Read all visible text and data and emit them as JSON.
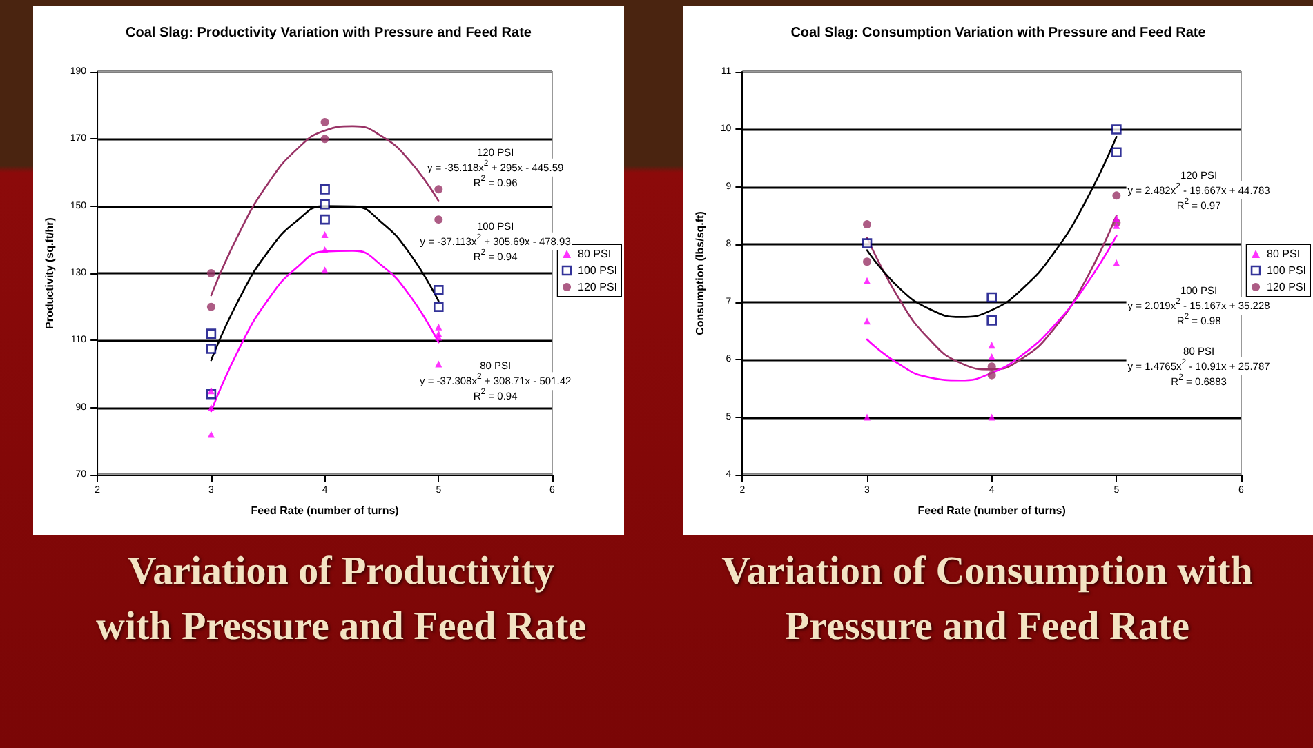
{
  "chart_data": [
    {
      "type": "scatter",
      "title": "Coal Slag: Productivity Variation with Pressure and Feed Rate",
      "subtitle": "Variation of Productivity with Pressure and Feed Rate",
      "xlabel": "Feed Rate (number of turns)",
      "ylabel": "Productivity (sq.ft/hr)",
      "xlim": [
        2,
        6
      ],
      "xticks": [
        2,
        3,
        4,
        5,
        6
      ],
      "ylim": [
        70,
        190
      ],
      "yticks": [
        70,
        90,
        110,
        130,
        150,
        170,
        190
      ],
      "grid": "y",
      "legend": "right",
      "series": [
        {
          "name": "80 PSI",
          "color": "#ff00ff",
          "marker": "triangle",
          "x": [
            3,
            3,
            3,
            4,
            4,
            4,
            5,
            5,
            5,
            5
          ],
          "values": [
            82,
            90,
            95,
            131,
            137,
            141.5,
            103,
            111,
            112,
            114
          ]
        },
        {
          "name": "100 PSI",
          "color": "#000080",
          "marker": "square",
          "x": [
            3,
            3,
            3,
            4,
            4,
            4,
            5,
            5
          ],
          "values": [
            94,
            107.5,
            112,
            146,
            150.5,
            155,
            120,
            125
          ]
        },
        {
          "name": "120 PSI",
          "color": "#993366",
          "marker": "circle",
          "x": [
            3,
            3,
            4,
            4,
            5,
            5
          ],
          "values": [
            120,
            130,
            170,
            175,
            146,
            155
          ]
        },
        {
          "type": "line",
          "color": "#993366",
          "marker": "none",
          "x": [
            3,
            3.25,
            3.5,
            3.75,
            4,
            4.25,
            4.5,
            4.75,
            5
          ],
          "values": [
            123.4,
            142.2,
            156.7,
            166.8,
            172.5,
            173.8,
            170.8,
            163.3,
            151.5
          ]
        },
        {
          "type": "line",
          "color": "#000000",
          "marker": "none",
          "x": [
            3,
            3.25,
            3.5,
            3.75,
            4,
            4.25,
            4.5,
            4.75,
            5
          ],
          "values": [
            104.1,
            122.6,
            136.4,
            145.5,
            150,
            149.9,
            145.1,
            135.7,
            121.7
          ]
        },
        {
          "type": "line",
          "color": "#ff00ff",
          "marker": "none",
          "x": [
            3,
            3.25,
            3.5,
            3.75,
            4,
            4.25,
            4.5,
            4.75,
            5
          ],
          "values": [
            88.9,
            107.8,
            122.1,
            131.6,
            136.5,
            136.7,
            132.3,
            123.2,
            109.4
          ]
        }
      ],
      "annotations": [
        "120 PSI",
        "y = -35.118x$^{2}$ + 295x - 445.59",
        "R$^{2}$ = 0.96",
        "100 PSI",
        "y = -37.113x$^{2}$ + 305.69x - 478.93",
        "R$^{2}$ = 0.94",
        "80 PSI",
        "y = -37.308x$^{2}$ + 308.71x - 501.42",
        "R$^{2}$ = 0.94"
      ]
    },
    {
      "type": "scatter",
      "title": "Coal Slag: Consumption Variation with Pressure and Feed Rate",
      "subtitle": "Variation of Consumption with Pressure and Feed Rate",
      "xlabel": "Feed Rate (number of turns)",
      "ylabel": "Consumption (lbs/sq.ft)",
      "xlim": [
        2,
        6
      ],
      "xticks": [
        2,
        3,
        4,
        5,
        6
      ],
      "ylim": [
        4,
        11
      ],
      "yticks": [
        4,
        5,
        6,
        7,
        8,
        9,
        10,
        11
      ],
      "grid": "y",
      "legend": "right",
      "series": [
        {
          "name": "80 PSI",
          "color": "#ff00ff",
          "marker": "triangle",
          "x": [
            3,
            3,
            3,
            4,
            4,
            4,
            5,
            5,
            5
          ],
          "values": [
            5,
            6.67,
            7.37,
            5,
            6.05,
            6.25,
            7.68,
            8.33,
            8.45
          ]
        },
        {
          "name": "100 PSI",
          "color": "#000080",
          "marker": "square",
          "x": [
            3,
            4,
            4,
            5,
            5
          ],
          "values": [
            8.02,
            6.68,
            7.08,
            9.6,
            10
          ]
        },
        {
          "name": "120 PSI",
          "color": "#993366",
          "marker": "circle",
          "x": [
            3,
            3,
            4,
            4,
            5,
            5
          ],
          "values": [
            7.7,
            8.35,
            5.73,
            5.88,
            8.38,
            8.85
          ]
        },
        {
          "type": "line",
          "color": "#993366",
          "marker": "none",
          "x": [
            3,
            3.25,
            3.5,
            3.75,
            4,
            4.25,
            4.5,
            4.75,
            5
          ],
          "values": [
            8.12,
            7.08,
            6.35,
            5.94,
            5.83,
            6.03,
            6.54,
            7.37,
            8.5
          ]
        },
        {
          "type": "line",
          "color": "#000000",
          "marker": "none",
          "x": [
            3,
            3.25,
            3.5,
            3.75,
            4,
            4.25,
            4.5,
            4.75,
            5
          ],
          "values": [
            7.9,
            7.26,
            6.88,
            6.74,
            6.86,
            7.24,
            7.86,
            8.74,
            9.87
          ]
        },
        {
          "type": "line",
          "color": "#ff00ff",
          "marker": "none",
          "x": [
            3,
            3.25,
            3.5,
            3.75,
            4,
            4.25,
            4.5,
            4.75,
            5
          ],
          "values": [
            6.35,
            5.93,
            5.69,
            5.64,
            5.77,
            6.09,
            6.59,
            7.28,
            8.15
          ]
        }
      ],
      "annotations": [
        "120 PSI",
        "y = 2.482x$^{2}$ - 19.667x + 44.783",
        "R$^{2}$ = 0.97",
        "100 PSI",
        "y = 2.019x$^{2}$ - 15.167x + 35.228",
        "R$^{2}$ = 0.98",
        "80 PSI",
        "y = 1.4765x$^{2}$ - 10.91x + 25.787",
        "R$^{2}$ = 0.6883"
      ]
    }
  ]
}
